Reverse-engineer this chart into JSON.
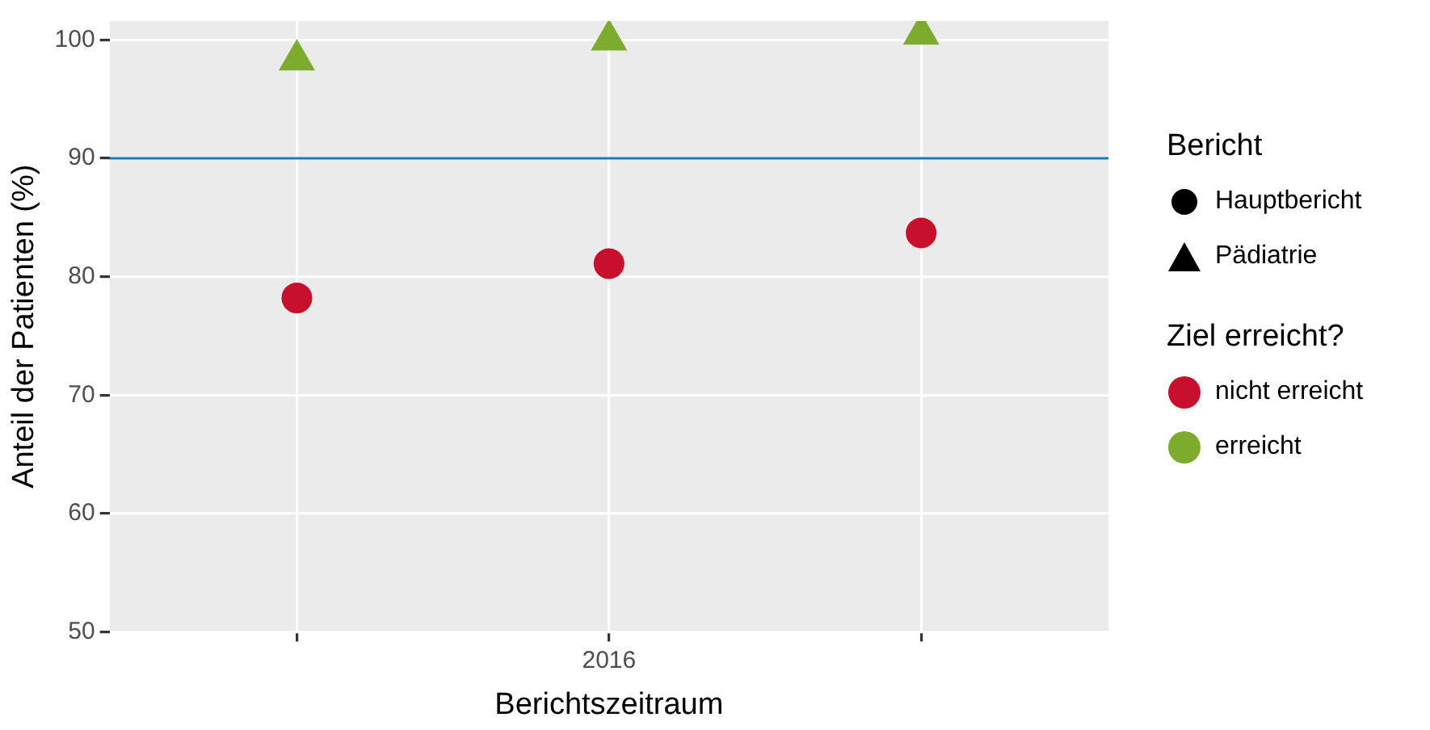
{
  "chart_data": {
    "type": "scatter",
    "xlabel": "Berichtszeitraum",
    "ylabel": "Anteil der Patienten (%)",
    "legend_title": "Ziel erreicht?",
    "categories": [
      null,
      "2016",
      null
    ],
    "series": [
      {
        "name": "nicht erreicht",
        "color": "#c8102e",
        "marker": "circle",
        "values": [
          78.2,
          81.1,
          83.7
        ]
      },
      {
        "name": "erreicht",
        "color": "#7cab2e",
        "marker": "triangle",
        "values": [
          98.3,
          100,
          100.5
        ]
      }
    ],
    "ylim": [
      50,
      101.6
    ],
    "yticks": [
      50,
      60,
      70,
      80,
      90,
      100
    ],
    "grid": true,
    "legend": "right",
    "ref_lines": [
      {
        "axis": "y",
        "value": 90,
        "color": "#1f78b4"
      }
    ],
    "annotations": [
      "Bericht",
      "Hauptbericht",
      "Pädiatrie"
    ]
  }
}
